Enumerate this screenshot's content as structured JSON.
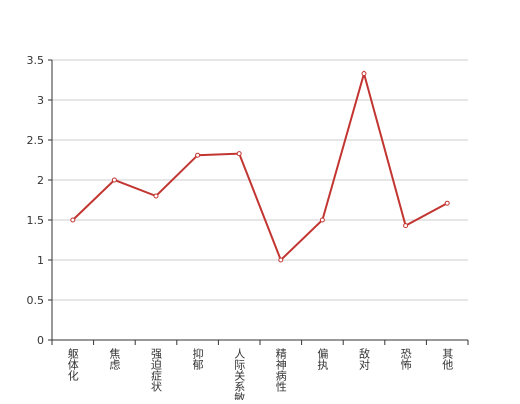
{
  "chart_data": {
    "type": "line",
    "categories": [
      "躯体化",
      "焦虑",
      "强迫症状",
      "抑郁",
      "人际关系敏感",
      "精神病性",
      "偏执",
      "敌对",
      "恐怖",
      "其他"
    ],
    "values": [
      1.5,
      2.0,
      1.8,
      2.31,
      2.33,
      1.0,
      1.5,
      3.33,
      1.43,
      1.71
    ],
    "color": "#c23531",
    "ylim": [
      0,
      3.5
    ],
    "yticks": [
      0,
      0.5,
      1,
      1.5,
      2,
      2.5,
      3,
      3.5
    ],
    "grid": true
  }
}
